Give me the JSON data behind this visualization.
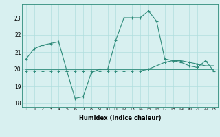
{
  "x_labels": [
    0,
    1,
    2,
    3,
    4,
    5,
    6,
    7,
    8,
    9,
    10,
    11,
    12,
    13,
    14,
    15,
    16,
    17,
    18,
    19,
    20,
    21,
    22,
    23
  ],
  "line1_y": [
    20.6,
    21.2,
    21.4,
    21.5,
    21.6,
    19.9,
    18.3,
    18.4,
    19.8,
    20.0,
    20.0,
    21.7,
    23.0,
    23.0,
    23.0,
    23.4,
    22.8,
    20.6,
    20.5,
    20.4,
    20.2,
    20.1,
    20.5,
    19.9
  ],
  "line2_y": [
    19.9,
    19.9,
    19.9,
    19.9,
    19.9,
    19.9,
    19.9,
    19.9,
    19.9,
    19.9,
    19.9,
    19.9,
    19.9,
    19.9,
    19.9,
    20.0,
    20.2,
    20.4,
    20.5,
    20.5,
    20.4,
    20.3,
    20.2,
    20.2
  ],
  "line3_y": [
    20.0,
    20.0,
    20.0,
    20.0,
    20.0,
    20.0,
    20.0,
    20.0,
    20.0,
    20.0,
    20.0,
    20.0,
    20.0,
    20.0,
    20.0,
    20.0,
    20.0,
    20.0,
    20.0,
    20.0,
    20.0,
    20.0,
    20.0,
    20.0
  ],
  "line_color": "#2e8b7a",
  "bg_color": "#d8f0f0",
  "grid_color": "#b0dede",
  "xlabel": "Humidex (Indice chaleur)",
  "ylim": [
    17.8,
    23.8
  ],
  "yticks": [
    18,
    19,
    20,
    21,
    22,
    23
  ],
  "figwidth": 3.2,
  "figheight": 2.0,
  "dpi": 100
}
